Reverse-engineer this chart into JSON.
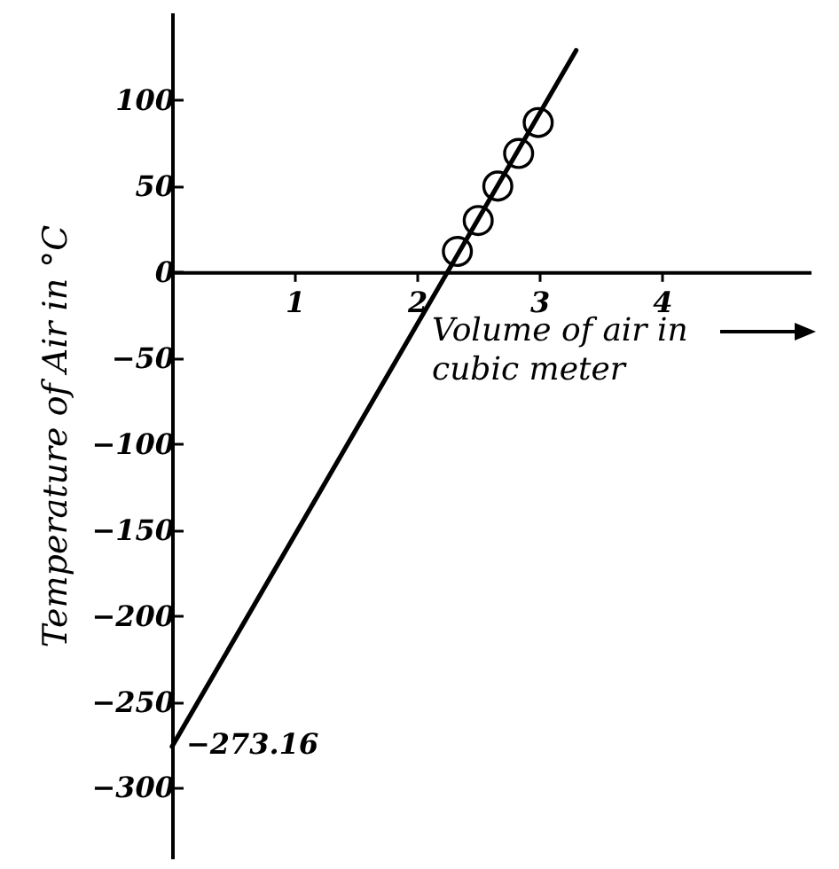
{
  "chart_data": {
    "type": "scatter",
    "xlabel": "Volume of air in cubic meter",
    "ylabel": "Temperature of Air in °C",
    "series": [
      {
        "color": "#000000",
        "marker": "circle",
        "x": [
          2.33,
          2.5,
          2.66,
          2.83,
          2.99
        ],
        "values": [
          12,
          30,
          50,
          69,
          87
        ]
      },
      {
        "type": "line",
        "color": "#000000",
        "x": [
          0,
          3.3
        ],
        "values": [
          -276,
          129
        ]
      }
    ],
    "xlim": [
      0,
      5.2
    ],
    "ylim": [
      -340,
      150
    ],
    "xticks": [
      1,
      2,
      3,
      4
    ],
    "yticks": [
      -300,
      -250,
      -200,
      -150,
      -100,
      -50,
      0,
      50,
      100
    ],
    "annotations": [
      {
        "text": "−273.16",
        "x": 0,
        "y": -273.16
      }
    ]
  }
}
